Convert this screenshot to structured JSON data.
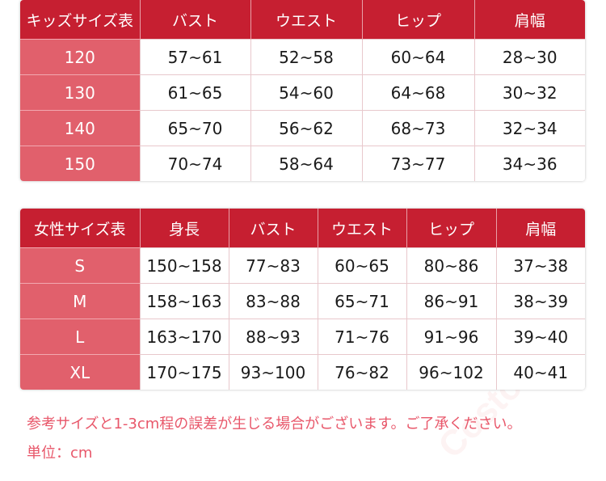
{
  "kids": {
    "headers": [
      "キッズサイズ表",
      "バスト",
      "ウエスト",
      "ヒップ",
      "肩幅"
    ],
    "rows": [
      [
        "120",
        "57~61",
        "52~58",
        "60~64",
        "28~30"
      ],
      [
        "130",
        "61~65",
        "54~60",
        "64~68",
        "30~32"
      ],
      [
        "140",
        "65~70",
        "56~62",
        "68~73",
        "32~34"
      ],
      [
        "150",
        "70~74",
        "58~64",
        "73~77",
        "34~36"
      ]
    ]
  },
  "women": {
    "headers": [
      "女性サイズ表",
      "身長",
      "バスト",
      "ウエスト",
      "ヒップ",
      "肩幅"
    ],
    "rows": [
      [
        "S",
        "150~158",
        "77~83",
        "60~65",
        "80~86",
        "37~38"
      ],
      [
        "M",
        "158~163",
        "83~88",
        "65~71",
        "86~91",
        "38~39"
      ],
      [
        "L",
        "163~170",
        "88~93",
        "71~76",
        "91~96",
        "39~40"
      ],
      [
        "XL",
        "170~175",
        "93~100",
        "76~82",
        "96~102",
        "40~41"
      ]
    ]
  },
  "notes": {
    "disclaimer": "参考サイズと1-3cm程の誤差が生じる場合がございます。ご了承ください。",
    "unit": "単位：cm"
  },
  "watermark": "Costowns",
  "colors": {
    "header": "#c61f31",
    "label_cell": "#e1606c",
    "note": "#e8576a"
  }
}
